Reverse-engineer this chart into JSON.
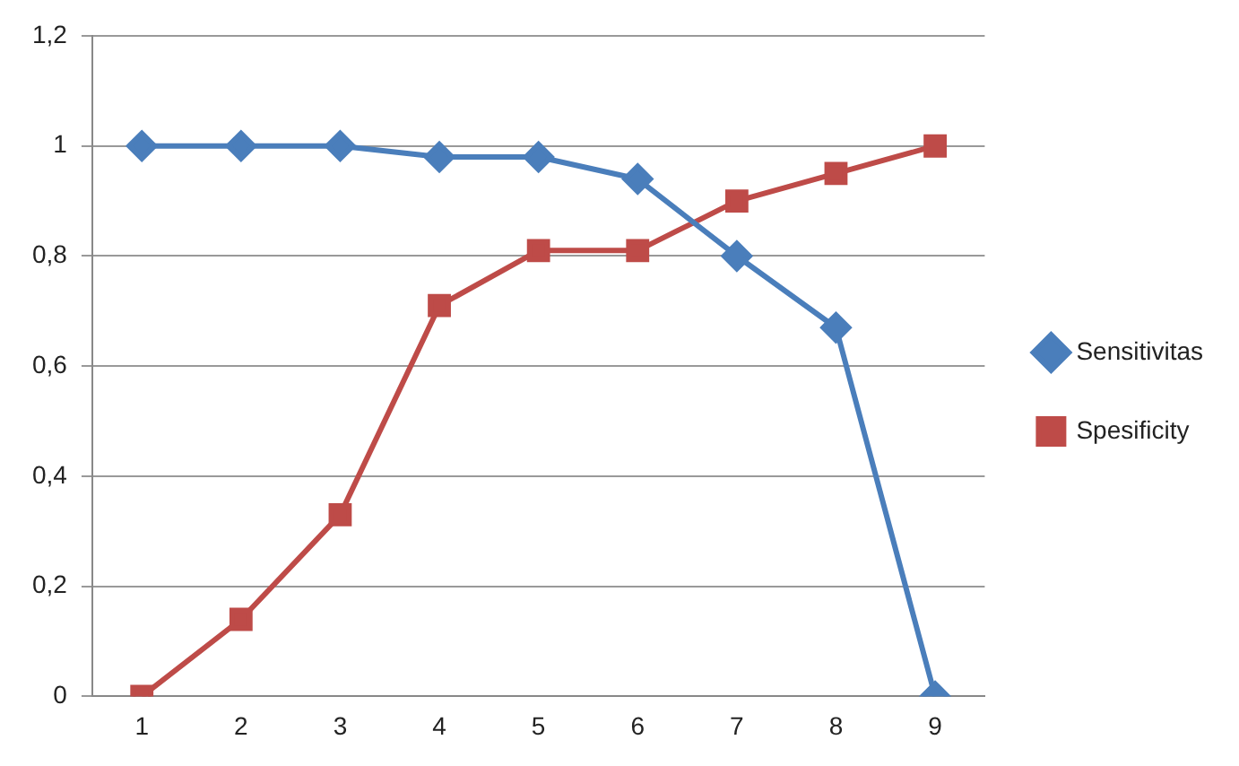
{
  "chart_data": {
    "type": "line",
    "categories": [
      "1",
      "2",
      "3",
      "4",
      "5",
      "6",
      "7",
      "8",
      "9"
    ],
    "series": [
      {
        "name": "Sensitivitas",
        "color": "#4a7ebb",
        "marker": "diamond",
        "values": [
          1,
          1,
          1,
          0.98,
          0.98,
          0.94,
          0.8,
          0.67,
          0
        ]
      },
      {
        "name": "Spesificity",
        "color": "#be4b48",
        "marker": "square",
        "values": [
          0,
          0.14,
          0.33,
          0.71,
          0.81,
          0.81,
          0.9,
          0.95,
          1
        ]
      }
    ],
    "ylim": [
      0,
      1.2
    ],
    "yticks": [
      0,
      {
        "value": 0.2,
        "label": "0,2"
      },
      {
        "value": 0.4,
        "label": "0,4"
      },
      {
        "value": 0.6,
        "label": "0,6"
      },
      {
        "value": 0.8,
        "label": "0,8"
      },
      1,
      {
        "value": 1.2,
        "label": "1,2"
      }
    ],
    "grid": "y",
    "legend": "right"
  }
}
